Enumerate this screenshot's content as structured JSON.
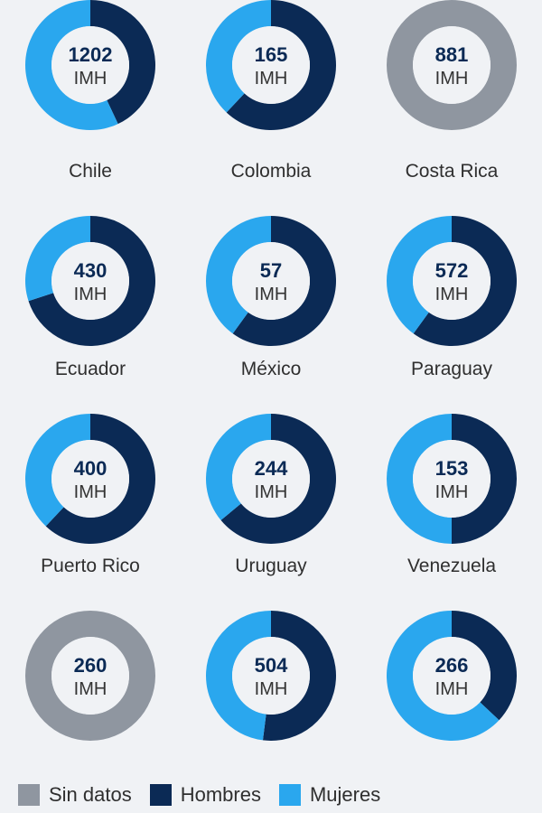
{
  "chart_data": {
    "type": "donut-grid",
    "unit_label": "IMH",
    "legend": [
      {
        "key": "sin_datos",
        "label": "Sin datos",
        "color": "#8f96a0"
      },
      {
        "key": "hombres",
        "label": "Hombres",
        "color": "#0b2a55"
      },
      {
        "key": "mujeres",
        "label": "Mujeres",
        "color": "#2aa7ee"
      }
    ],
    "items": [
      {
        "country": "",
        "total": "1202",
        "hombres_share": 0.43,
        "mujeres_share": 0.57,
        "sin_datos": false
      },
      {
        "country": "",
        "total": "165",
        "hombres_share": 0.62,
        "mujeres_share": 0.38,
        "sin_datos": false
      },
      {
        "country": "",
        "total": "881",
        "hombres_share": 0,
        "mujeres_share": 0,
        "sin_datos": true
      },
      {
        "country": "Chile",
        "total": "430",
        "hombres_share": 0.7,
        "mujeres_share": 0.3,
        "sin_datos": false
      },
      {
        "country": "Colombia",
        "total": "57",
        "hombres_share": 0.6,
        "mujeres_share": 0.4,
        "sin_datos": false
      },
      {
        "country": "Costa Rica",
        "total": "572",
        "hombres_share": 0.6,
        "mujeres_share": 0.4,
        "sin_datos": false
      },
      {
        "country": "Ecuador",
        "total": "400",
        "hombres_share": 0.62,
        "mujeres_share": 0.38,
        "sin_datos": false
      },
      {
        "country": "México",
        "total": "244",
        "hombres_share": 0.64,
        "mujeres_share": 0.36,
        "sin_datos": false
      },
      {
        "country": "Paraguay",
        "total": "153",
        "hombres_share": 0.5,
        "mujeres_share": 0.5,
        "sin_datos": false
      },
      {
        "country": "Puerto Rico",
        "total": "260",
        "hombres_share": 0,
        "mujeres_share": 0,
        "sin_datos": true
      },
      {
        "country": "Uruguay",
        "total": "504",
        "hombres_share": 0.52,
        "mujeres_share": 0.48,
        "sin_datos": false
      },
      {
        "country": "Venezuela",
        "total": "266",
        "hombres_share": 0.37,
        "mujeres_share": 0.63,
        "sin_datos": false
      }
    ]
  }
}
